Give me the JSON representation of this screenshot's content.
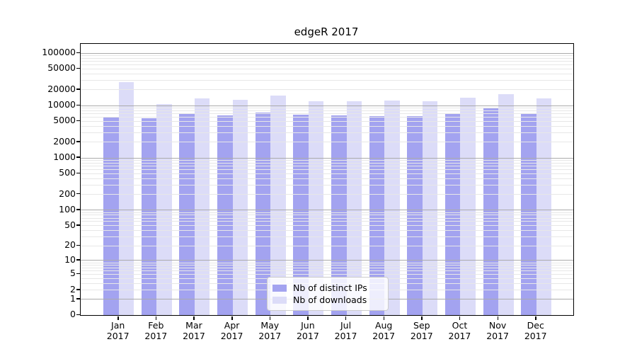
{
  "title": "edgeR 2017",
  "chart_data": {
    "type": "bar",
    "title": "edgeR 2017",
    "xlabel": "",
    "ylabel": "",
    "y_scale": "log1p",
    "ylim": [
      0,
      150000
    ],
    "grid": "both",
    "legend_position": "lower center",
    "categories": [
      "Jan 2017",
      "Feb 2017",
      "Mar 2017",
      "Apr 2017",
      "May 2017",
      "Jun 2017",
      "Jul 2017",
      "Aug 2017",
      "Sep 2017",
      "Oct 2017",
      "Nov 2017",
      "Dec 2017"
    ],
    "y_tick_labels": [
      0,
      1,
      2,
      5,
      10,
      20,
      50,
      100,
      200,
      500,
      1000,
      2000,
      5000,
      10000,
      20000,
      50000,
      100000
    ],
    "series": [
      {
        "name": "Nb of distinct IPs",
        "color": "#a3a3f0",
        "values": [
          6100,
          5700,
          6900,
          6500,
          7300,
          6600,
          6400,
          6200,
          6300,
          7200,
          8900,
          7100
        ]
      },
      {
        "name": "Nb of downloads",
        "color": "#dcdcf8",
        "values": [
          28000,
          10800,
          13500,
          13000,
          15300,
          12100,
          12200,
          12300,
          12100,
          14200,
          16300,
          13800
        ]
      }
    ]
  },
  "legend": {
    "items": [
      {
        "label": "Nb of distinct IPs",
        "color": "#a3a3f0"
      },
      {
        "label": "Nb of downloads",
        "color": "#dcdcf8"
      }
    ]
  },
  "colors": {
    "major_grid": "#ababab",
    "minor_grid": "#e7e7e7",
    "spine": "#000000",
    "background": "#ffffff"
  }
}
